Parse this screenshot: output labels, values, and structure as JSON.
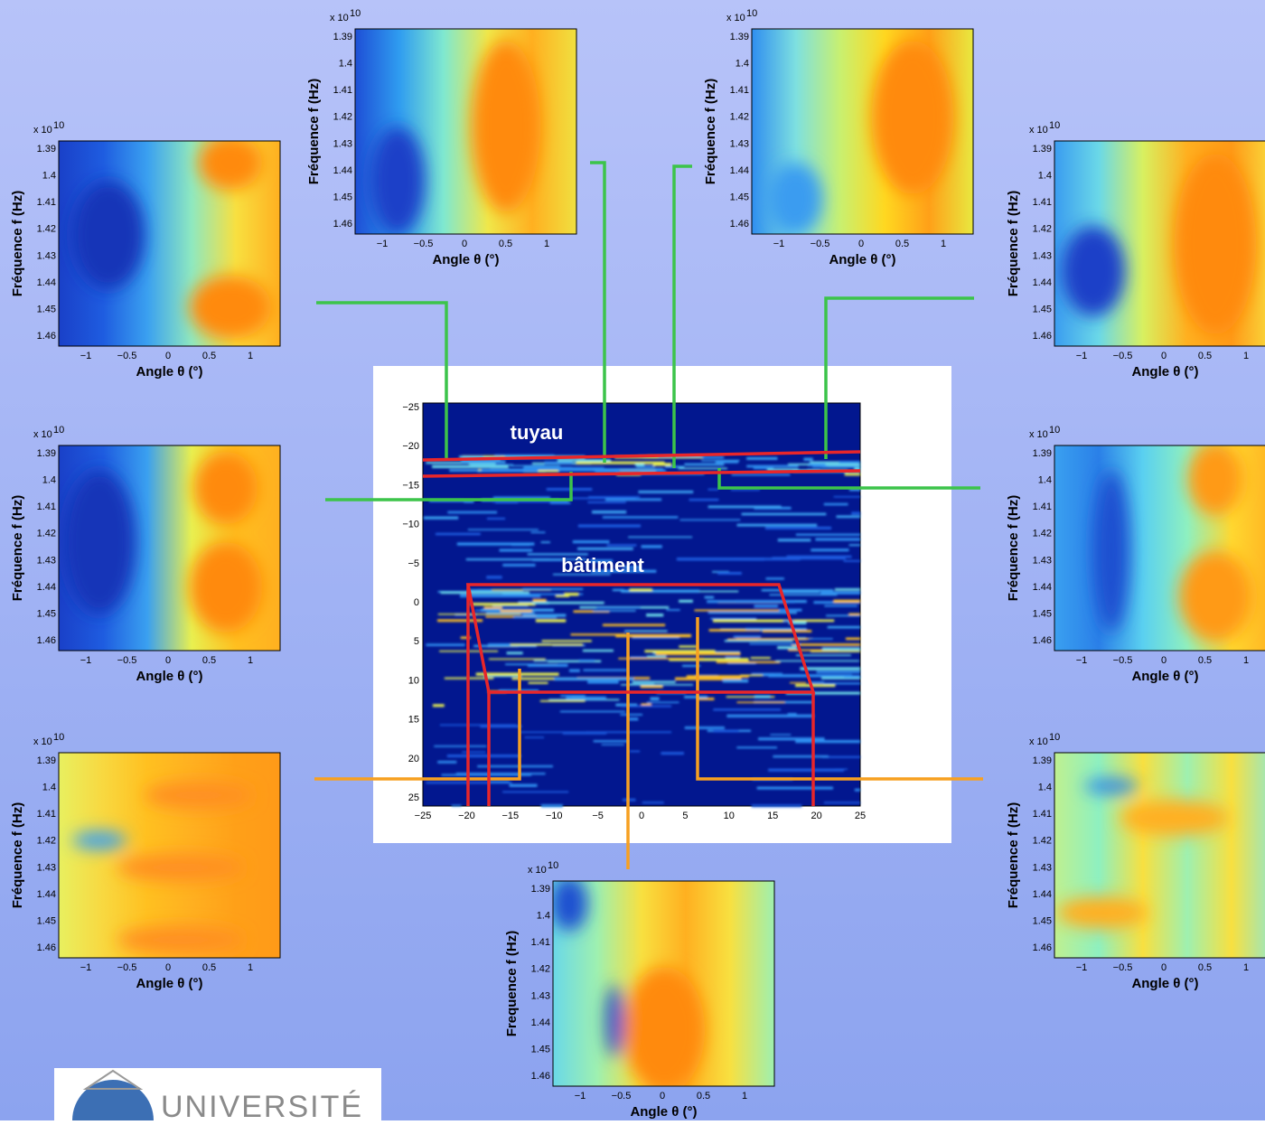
{
  "central": {
    "yticks": [
      "−25",
      "−20",
      "−15",
      "−10",
      "−5",
      "0",
      "5",
      "10",
      "15",
      "20",
      "25"
    ],
    "xticks": [
      "−25",
      "−20",
      "−15",
      "−10",
      "−5",
      "0",
      "5",
      "10",
      "15",
      "20",
      "25"
    ],
    "labels": [
      "tuyau",
      "bâtiment"
    ]
  },
  "panels": [
    {
      "exponent_base": "x 10",
      "exponent_power": "10",
      "yticks": [
        "1.39",
        "1.4",
        "1.41",
        "1.42",
        "1.43",
        "1.44",
        "1.45",
        "1.46"
      ],
      "xticks": [
        "−1",
        "−0.5",
        "0",
        "0.5",
        "1"
      ],
      "ylabel": "Fréquence  f (Hz)",
      "xlabel": "Angle  θ (°)"
    },
    {
      "exponent_base": "x 10",
      "exponent_power": "10",
      "yticks": [
        "1.39",
        "1.4",
        "1.41",
        "1.42",
        "1.43",
        "1.44",
        "1.45",
        "1.46"
      ],
      "xticks": [
        "−1",
        "−0.5",
        "0",
        "0.5",
        "1"
      ],
      "ylabel": "Fréquence  f (Hz)",
      "xlabel": "Angle  θ (°)"
    },
    {
      "exponent_base": "x 10",
      "exponent_power": "10",
      "yticks": [
        "1.39",
        "1.4",
        "1.41",
        "1.42",
        "1.43",
        "1.44",
        "1.45",
        "1.46"
      ],
      "xticks": [
        "−1",
        "−0.5",
        "0",
        "0.5",
        "1"
      ],
      "ylabel": "Fréquence  f (Hz)",
      "xlabel": "Angle  θ (°)"
    },
    {
      "exponent_base": "x 10",
      "exponent_power": "10",
      "yticks": [
        "1.39",
        "1.4",
        "1.41",
        "1.42",
        "1.43",
        "1.44",
        "1.45",
        "1.46"
      ],
      "xticks": [
        "−1",
        "−0.5",
        "0",
        "0.5",
        "1"
      ],
      "ylabel": "Fréquence  f (Hz)",
      "xlabel": "Angle  θ (°)"
    },
    {
      "exponent_base": "x 10",
      "exponent_power": "10",
      "yticks": [
        "1.39",
        "1.4",
        "1.41",
        "1.42",
        "1.43",
        "1.44",
        "1.45",
        "1.46"
      ],
      "xticks": [
        "−1",
        "−0.5",
        "0",
        "0.5",
        "1"
      ],
      "ylabel": "Fréquence  f (Hz)",
      "xlabel": "Angle  θ (°)"
    },
    {
      "exponent_base": "x 10",
      "exponent_power": "10",
      "yticks": [
        "1.39",
        "1.4",
        "1.41",
        "1.42",
        "1.43",
        "1.44",
        "1.45",
        "1.46"
      ],
      "xticks": [
        "−1",
        "−0.5",
        "0",
        "0.5",
        "1"
      ],
      "ylabel": "Fréquence  f (Hz)",
      "xlabel": "Angle  θ (°)"
    },
    {
      "exponent_base": "x 10",
      "exponent_power": "10",
      "yticks": [
        "1.39",
        "1.4",
        "1.41",
        "1.42",
        "1.43",
        "1.44",
        "1.45",
        "1.46"
      ],
      "xticks": [
        "−1",
        "−0.5",
        "0",
        "0.5",
        "1"
      ],
      "ylabel": "Fréquence  f (Hz)",
      "xlabel": "Angle  θ (°)"
    },
    {
      "exponent_base": "x 10",
      "exponent_power": "10",
      "yticks": [
        "1.39",
        "1.4",
        "1.41",
        "1.42",
        "1.43",
        "1.44",
        "1.45",
        "1.46"
      ],
      "xticks": [
        "−1",
        "−0.5",
        "0",
        "0.5",
        "1"
      ],
      "ylabel": "Fréquence  f (Hz)",
      "xlabel": "Angle  θ (°)"
    },
    {
      "exponent_base": "x 10",
      "exponent_power": "10",
      "yticks": [
        "1.39",
        "1.4",
        "1.41",
        "1.42",
        "1.43",
        "1.44",
        "1.45",
        "1.46"
      ],
      "xticks": [
        "−1",
        "−0.5",
        "0",
        "0.5",
        "1"
      ],
      "ylabel": "Frequence  f (Hz)",
      "xlabel": "Angle  θ (°)"
    }
  ],
  "logo": {
    "text": "UNIVERSITÉ"
  }
}
